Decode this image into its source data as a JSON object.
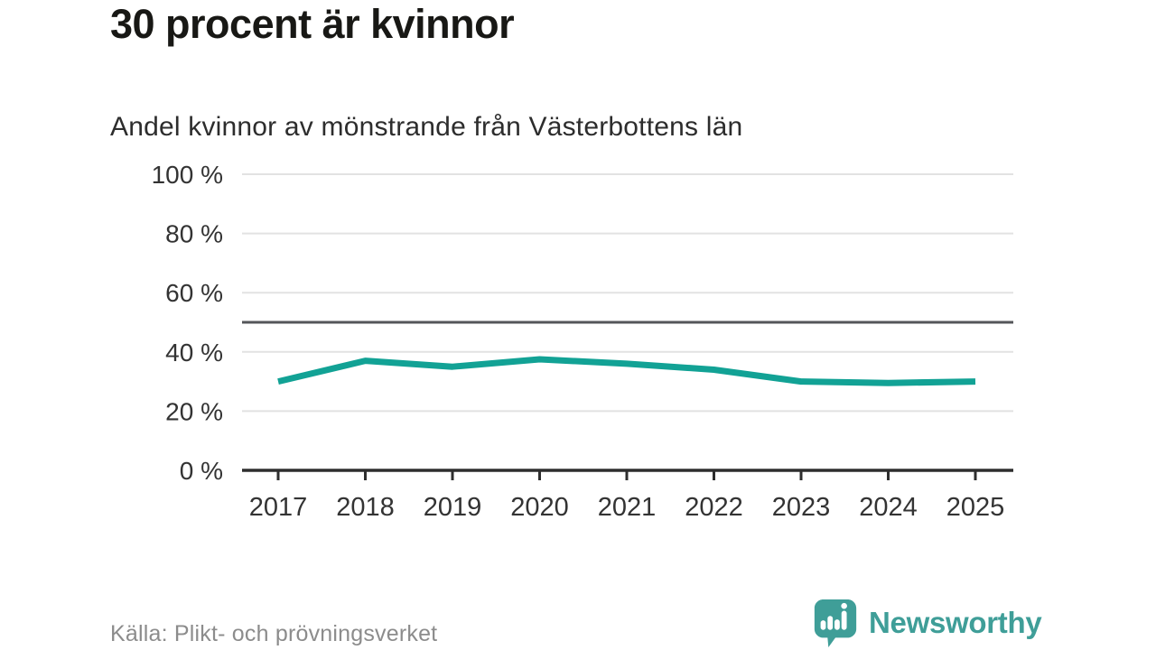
{
  "header": {
    "title": "30 procent är kvinnor",
    "subtitle": "Andel kvinnor av mönstrande från Västerbottens län"
  },
  "chart_data": {
    "type": "line",
    "title": "30 procent är kvinnor",
    "subtitle": "Andel kvinnor av mönstrande från Västerbottens län",
    "categories": [
      "2017",
      "2018",
      "2019",
      "2020",
      "2021",
      "2022",
      "2023",
      "2024",
      "2025"
    ],
    "series": [
      {
        "name": "Andel kvinnor av mönstrande",
        "values": [
          30,
          37,
          35,
          37.5,
          36,
          34,
          30,
          29.5,
          30
        ]
      }
    ],
    "xlabel": "",
    "ylabel": "",
    "ylim": [
      0,
      100
    ],
    "yticks": [
      0,
      20,
      40,
      60,
      80,
      100
    ],
    "ytick_labels": [
      "0 %",
      "20 %",
      "40 %",
      "60 %",
      "80 %",
      "100 %"
    ],
    "grid": true,
    "legend": false,
    "reference_line": 50,
    "line_color": "#12a295",
    "reference_line_color": "#54565a",
    "grid_color": "#e2e2e2",
    "axis_color": "#2e2e2e"
  },
  "footer": {
    "source": "Källa: Plikt- och prövningsverket",
    "brand": "Newsworthy",
    "brand_color": "#3f9e98"
  }
}
